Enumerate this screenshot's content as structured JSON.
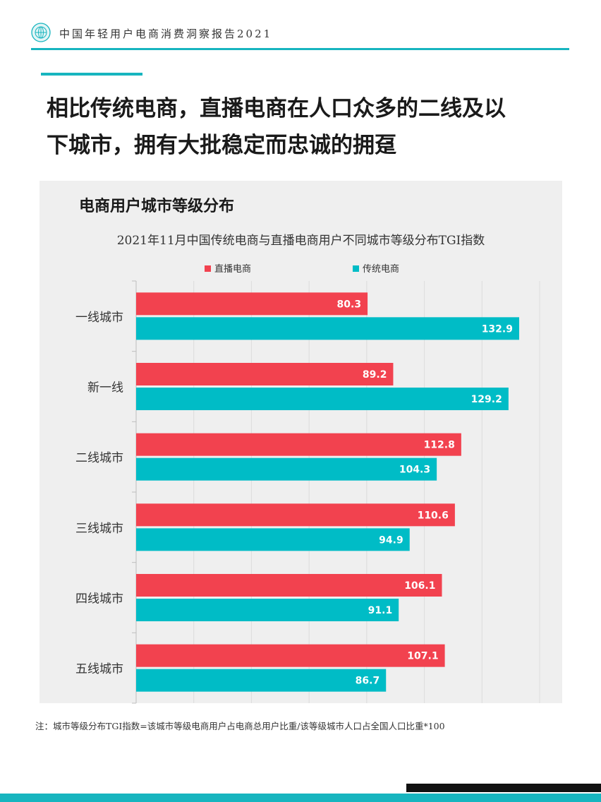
{
  "header": {
    "report_title": "中国年轻用户电商消费洞察报告2021"
  },
  "headline": {
    "line1": "相比传统电商，直播电商在人口众多的二线及以",
    "line2": "下城市，拥有大批稳定而忠诚的拥趸"
  },
  "colors": {
    "accent": "#17b5bf",
    "live": "#f2424f",
    "traditional": "#00bcc6"
  },
  "chart_data": {
    "type": "bar",
    "orientation": "horizontal",
    "title": "电商用户城市等级分布",
    "subtitle": "2021年11月中国传统电商与直播电商用户不同城市等级分布TGI指数",
    "categories": [
      "一线城市",
      "新一线",
      "二线城市",
      "三线城市",
      "四线城市",
      "五线城市"
    ],
    "series": [
      {
        "name": "直播电商",
        "values": [
          80.3,
          89.2,
          112.8,
          110.6,
          106.1,
          107.1
        ]
      },
      {
        "name": "传统电商",
        "values": [
          132.9,
          129.2,
          104.3,
          94.9,
          91.1,
          86.7
        ]
      }
    ],
    "xlim": [
      0,
      140
    ],
    "grid": true,
    "legend": "top"
  },
  "footnote": "注：城市等级分布TGI指数=该城市等级电商用户占电商总用户比重/该等级城市人口占全国人口比重*100"
}
